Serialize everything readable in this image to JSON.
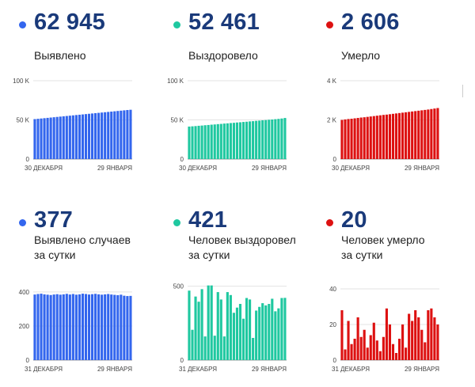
{
  "colors": {
    "blue": "#3366ee",
    "green": "#1fc8a0",
    "red": "#dd1111"
  },
  "panels": [
    {
      "value": "62 945",
      "label_lines": [
        "Выявлено"
      ],
      "color": "blue"
    },
    {
      "value": "52 461",
      "label_lines": [
        "Выздоровело"
      ],
      "color": "green"
    },
    {
      "value": "2 606",
      "label_lines": [
        "Умерло"
      ],
      "color": "red"
    },
    {
      "value": "377",
      "label_lines": [
        "Выявлено случаев",
        "за сутки"
      ],
      "color": "blue"
    },
    {
      "value": "421",
      "label_lines": [
        "Человек выздоровел",
        "за сутки"
      ],
      "color": "green"
    },
    {
      "value": "20",
      "label_lines": [
        "Человек умерло",
        "за сутки"
      ],
      "color": "red"
    }
  ],
  "chart_data": [
    {
      "type": "bar",
      "color": "blue",
      "x_start_label": "30 ДЕКАБРЯ",
      "x_end_label": "29 ЯНВАРЯ",
      "yticks": [
        0,
        50000,
        100000
      ],
      "ytick_labels": [
        "0",
        "50 K",
        "100 K"
      ],
      "ylim": [
        0,
        100000
      ],
      "values": [
        51000,
        51400,
        51800,
        52200,
        52600,
        53000,
        53400,
        53800,
        54200,
        54600,
        55000,
        55400,
        55800,
        56200,
        56600,
        57000,
        57400,
        57800,
        58200,
        58600,
        59000,
        59400,
        59800,
        60200,
        60600,
        61000,
        61400,
        61800,
        62200,
        62600,
        62945
      ]
    },
    {
      "type": "bar",
      "color": "green",
      "x_start_label": "30 ДЕКАБРЯ",
      "x_end_label": "29 ЯНВАРЯ",
      "yticks": [
        0,
        50000,
        100000
      ],
      "ytick_labels": [
        "0",
        "50 K",
        "100 K"
      ],
      "ylim": [
        0,
        100000
      ],
      "values": [
        41500,
        41800,
        42100,
        42500,
        42800,
        43200,
        43500,
        43900,
        44200,
        44600,
        44900,
        45300,
        45600,
        46000,
        46300,
        46700,
        47000,
        47400,
        47700,
        48100,
        48400,
        48800,
        49100,
        49500,
        49800,
        50200,
        50500,
        50900,
        51300,
        51800,
        52461
      ]
    },
    {
      "type": "bar",
      "color": "red",
      "x_start_label": "30 ДЕКАБРЯ",
      "x_end_label": "29 ЯНВАРЯ",
      "yticks": [
        0,
        2000,
        4000
      ],
      "ytick_labels": [
        "0",
        "2 K",
        "4 K"
      ],
      "ylim": [
        0,
        4000
      ],
      "values": [
        2000,
        2025,
        2045,
        2060,
        2080,
        2100,
        2120,
        2135,
        2155,
        2175,
        2195,
        2215,
        2235,
        2255,
        2270,
        2290,
        2310,
        2330,
        2350,
        2370,
        2390,
        2410,
        2430,
        2450,
        2470,
        2490,
        2510,
        2530,
        2555,
        2580,
        2606
      ]
    },
    {
      "type": "bar",
      "color": "blue",
      "x_start_label": "31 ДЕКАБРЯ",
      "x_end_label": "29 ЯНВАРЯ",
      "yticks": [
        0,
        200,
        400
      ],
      "ytick_labels": [
        "0",
        "200",
        "400"
      ],
      "ylim": [
        0,
        460
      ],
      "values": [
        385,
        388,
        390,
        386,
        384,
        382,
        385,
        387,
        384,
        386,
        389,
        385,
        388,
        384,
        386,
        390,
        388,
        385,
        387,
        389,
        386,
        384,
        386,
        388,
        385,
        383,
        381,
        384,
        378,
        376,
        377
      ]
    },
    {
      "type": "bar",
      "color": "green",
      "x_start_label": "31 ДЕКАБРЯ",
      "x_end_label": "29 ЯНВАРЯ",
      "yticks": [
        0,
        500
      ],
      "ytick_labels": [
        "0",
        "500"
      ],
      "ylim": [
        0,
        530
      ],
      "values": [
        470,
        205,
        430,
        395,
        480,
        160,
        505,
        505,
        165,
        460,
        410,
        160,
        460,
        440,
        320,
        355,
        380,
        280,
        420,
        410,
        150,
        335,
        360,
        385,
        370,
        380,
        415,
        330,
        350,
        420,
        421
      ]
    },
    {
      "type": "bar",
      "color": "red",
      "x_start_label": "31 ДЕКАБРЯ",
      "x_end_label": "29 ЯНВАРЯ",
      "yticks": [
        0,
        20,
        40
      ],
      "ytick_labels": [
        "0",
        "20",
        "40"
      ],
      "ylim": [
        0,
        44
      ],
      "values": [
        28,
        6,
        22,
        9,
        12,
        24,
        13,
        17,
        7,
        14,
        21,
        11,
        5,
        13,
        29,
        20,
        9,
        4,
        12,
        20,
        7,
        26,
        22,
        28,
        24,
        17,
        10,
        28,
        29,
        24,
        20
      ]
    }
  ]
}
